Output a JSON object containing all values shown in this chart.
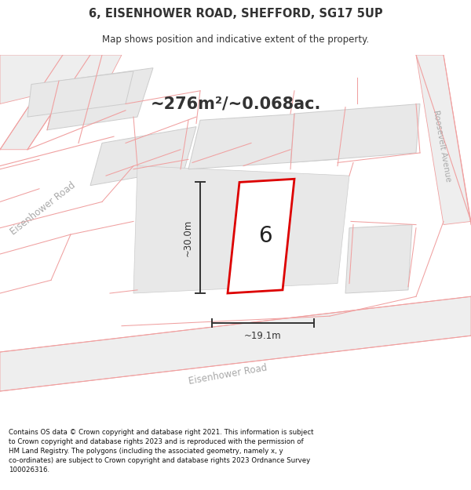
{
  "title": "6, EISENHOWER ROAD, SHEFFORD, SG17 5UP",
  "subtitle": "Map shows position and indicative extent of the property.",
  "area_text": "~276m²/~0.068ac.",
  "dim_width": "~19.1m",
  "dim_height": "~30.0m",
  "plot_number": "6",
  "footer_text": "Contains OS data © Crown copyright and database right 2021. This information is subject to Crown copyright and database rights 2023 and is reproduced with the permission of HM Land Registry. The polygons (including the associated geometry, namely x, y co-ordinates) are subject to Crown copyright and database rights 2023 Ordnance Survey 100026316.",
  "bg_color": "#ffffff",
  "map_bg": "#ffffff",
  "block_fill": "#e8e8e8",
  "block_edge": "#cccccc",
  "road_line_color": "#f0a0a0",
  "red_outline_color": "#dd0000",
  "dim_color": "#333333",
  "road_label_color": "#aaaaaa",
  "title_color": "#333333",
  "plot_label_color": "#222222",
  "road_fill": "#f0f0f0"
}
